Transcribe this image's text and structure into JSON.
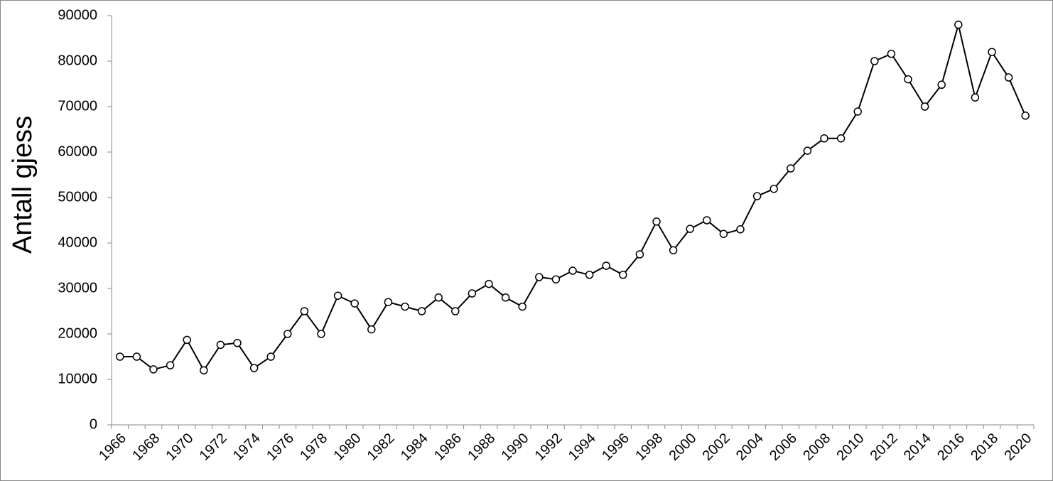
{
  "chart_data": {
    "type": "line",
    "y_label": "Antall gjess",
    "categories": [
      "1966",
      null,
      "1968",
      null,
      "1970",
      null,
      "1972",
      null,
      "1974",
      null,
      "1976",
      null,
      "1978",
      null,
      "1980",
      null,
      "1982",
      null,
      "1984",
      null,
      "1986",
      null,
      "1988",
      null,
      "1990",
      null,
      "1992",
      null,
      "1994",
      null,
      "1996",
      null,
      "1998",
      null,
      "2000",
      null,
      "2002",
      null,
      "2004",
      null,
      "2006",
      null,
      "2008",
      null,
      "2010",
      null,
      "2012",
      null,
      "2014",
      null,
      "2016",
      null,
      "2018",
      null,
      "2020"
    ],
    "values": [
      15000,
      15000,
      12200,
      13100,
      18700,
      12000,
      17600,
      18000,
      12500,
      15000,
      20000,
      25000,
      20000,
      28400,
      26700,
      21000,
      27000,
      26000,
      25000,
      28000,
      25000,
      28900,
      31000,
      28000,
      26000,
      32500,
      32000,
      33900,
      33000,
      35000,
      33000,
      37500,
      44700,
      38400,
      43100,
      45000,
      42000,
      43000,
      50300,
      51900,
      56400,
      60300,
      63000,
      63000,
      68900,
      80000,
      81600,
      76000,
      70000,
      74800,
      88000,
      72000,
      82000,
      76400,
      68000
    ],
    "color": "#000000",
    "ylim": [
      0,
      90000
    ],
    "yticks": [
      0,
      10000,
      20000,
      30000,
      40000,
      50000,
      60000,
      70000,
      80000,
      90000
    ],
    "grid": false
  }
}
